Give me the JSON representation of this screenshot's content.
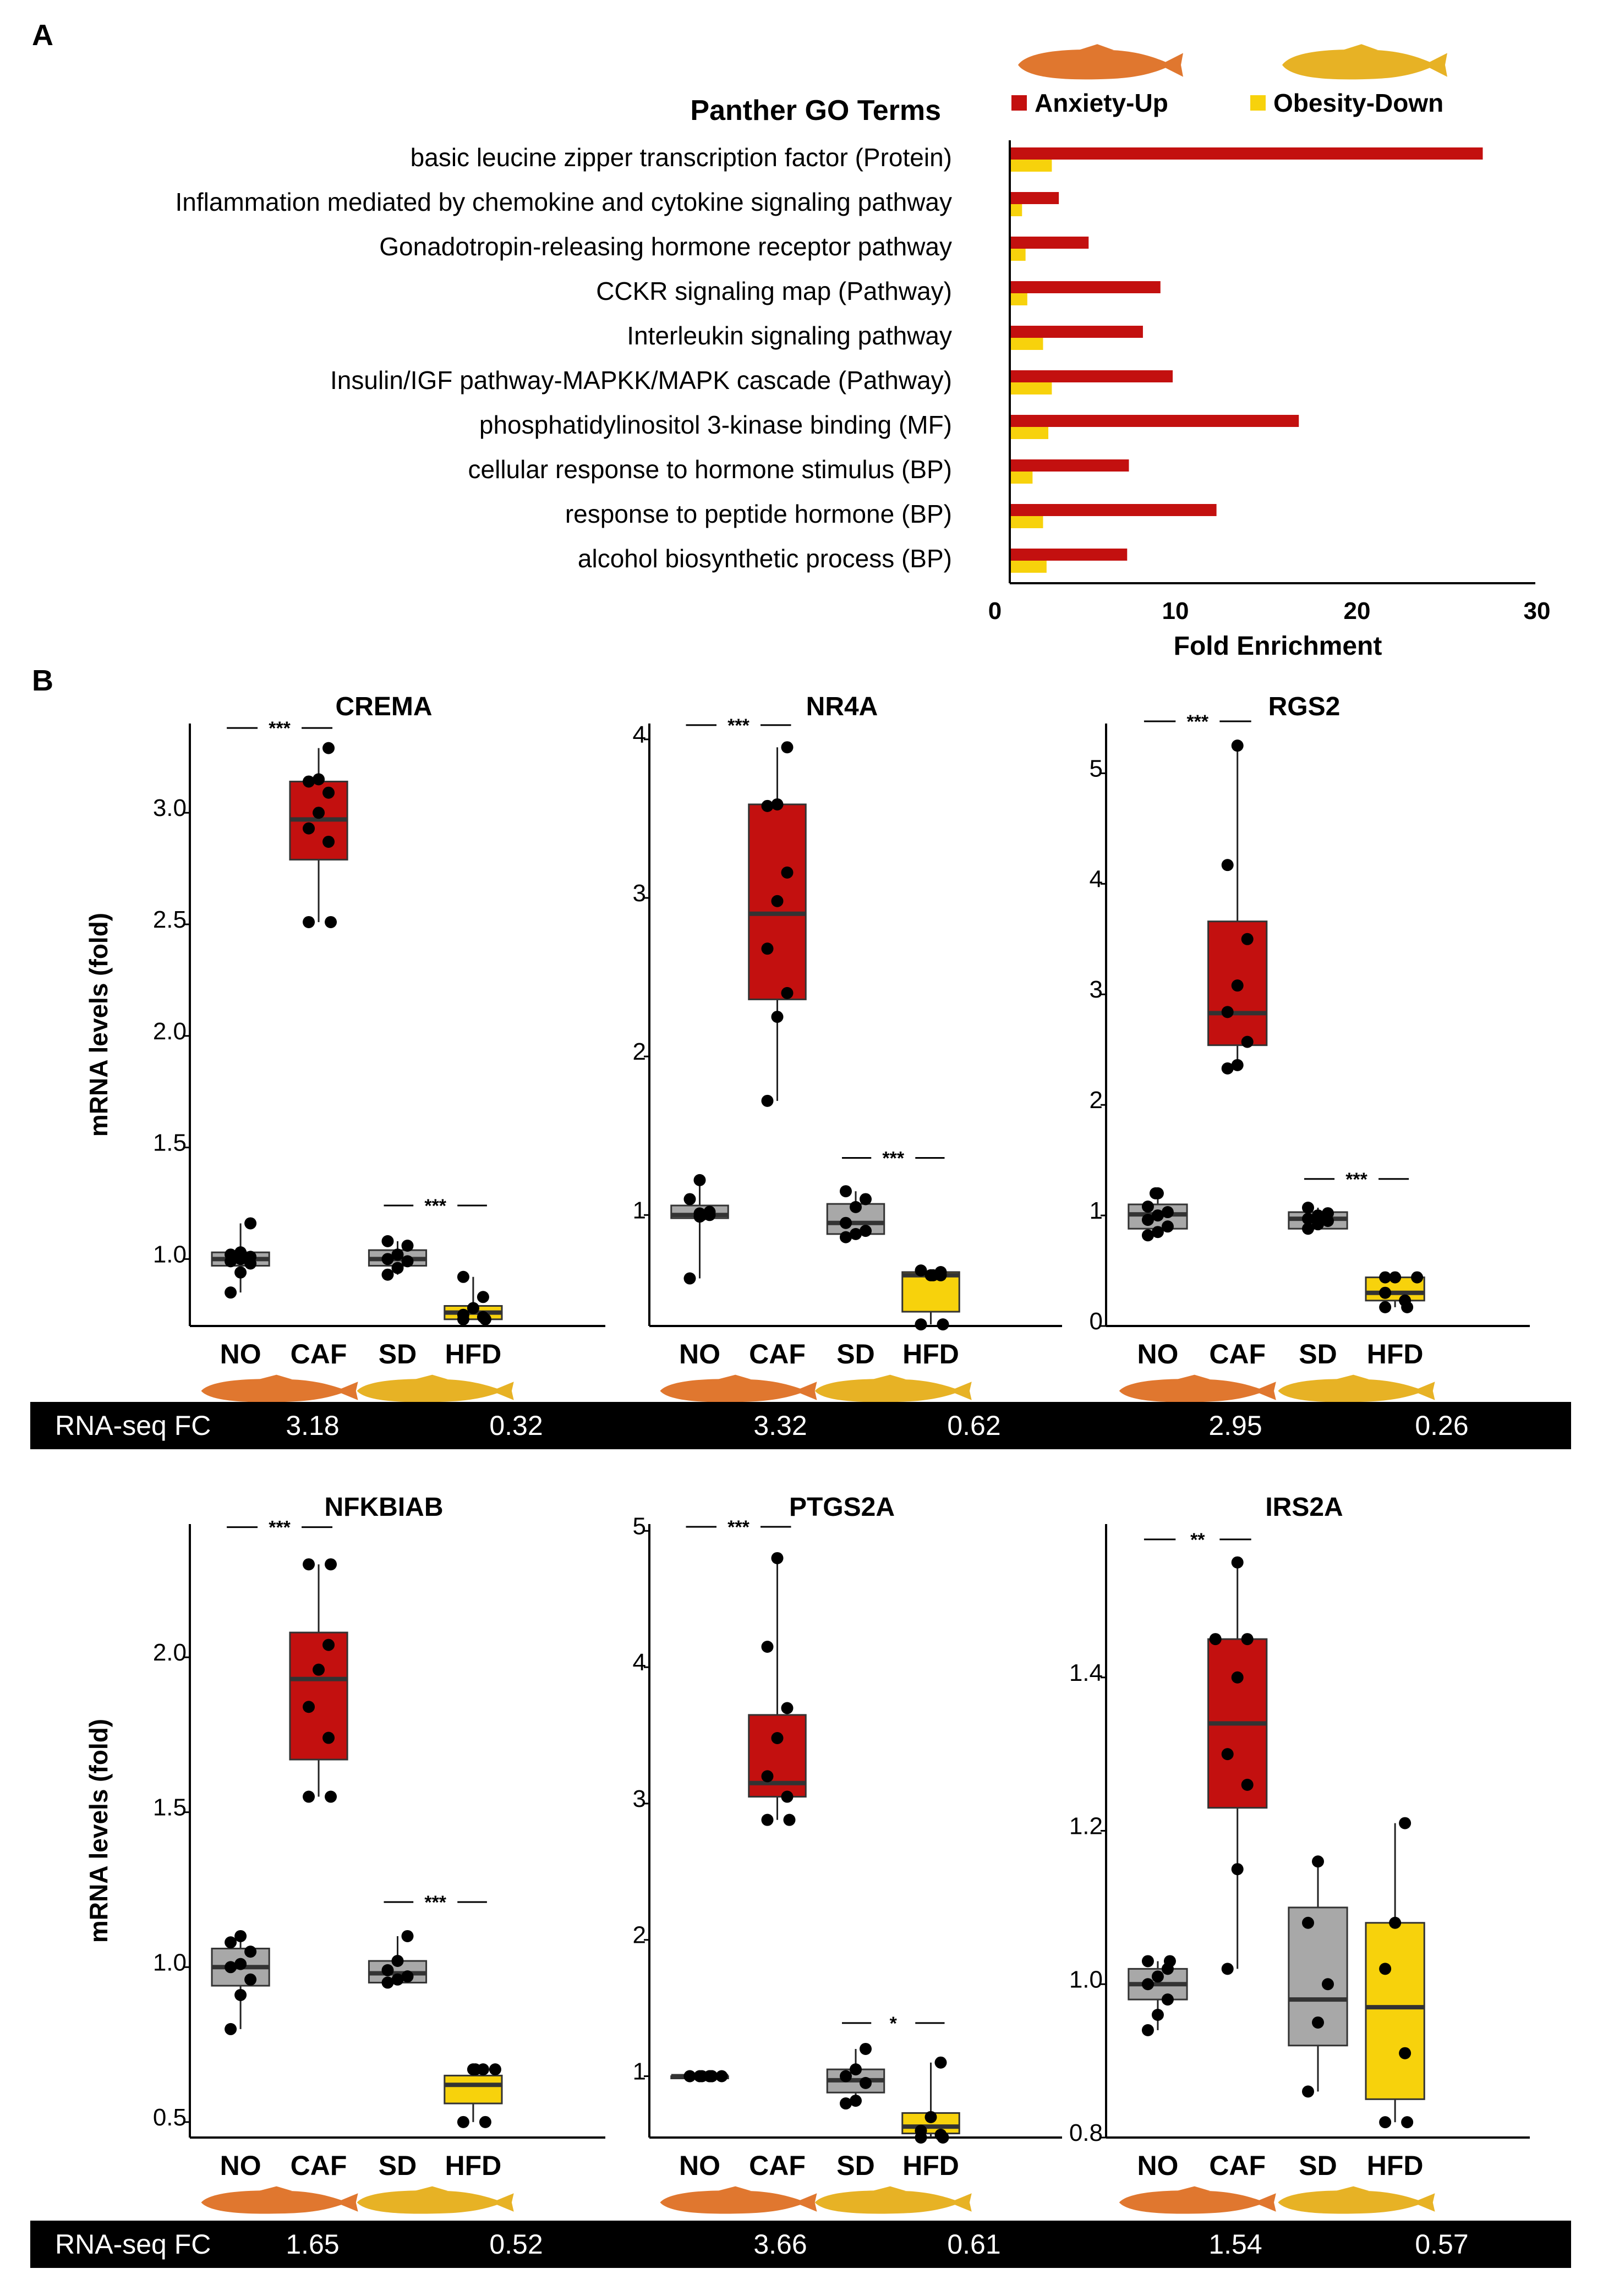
{
  "panel_labels": {
    "a": "A",
    "b": "B"
  },
  "colors": {
    "anxiety": "#c3100f",
    "obesity": "#f7d20c",
    "control": "#a8a8a8",
    "fish_orange": "#e0772f",
    "fish_gold": "#e7b225",
    "banner": "#000000",
    "banner_text": "#ffffff"
  },
  "icons": [
    "orange-fish-icon",
    "gold-fish-icon"
  ],
  "chart_data": [
    {
      "type": "bar",
      "orientation": "horizontal",
      "title": "Panther GO Terms",
      "xlabel": "Fold Enrichment",
      "xlim": [
        0,
        30
      ],
      "xticks": [
        0,
        10,
        20,
        30
      ],
      "legend_position": "top-right",
      "categories": [
        "basic leucine zipper transcription factor (Protein)",
        "Inflammation mediated by chemokine and cytokine signaling pathway",
        "Gonadotropin-releasing hormone receptor pathway",
        "CCKR signaling map (Pathway)",
        "Interleukin signaling pathway",
        "Insulin/IGF pathway-MAPKK/MAPK cascade (Pathway)",
        "phosphatidylinositol 3-kinase binding (MF)",
        "cellular response to hormone stimulus (BP)",
        "response to peptide hormone (BP)",
        "alcohol biosynthetic process (BP)"
      ],
      "series": [
        {
          "name": "Anxiety-Up",
          "values": [
            27.0,
            2.8,
            4.5,
            8.6,
            7.6,
            9.3,
            16.5,
            6.8,
            11.8,
            6.7
          ]
        },
        {
          "name": "Obesity-Down",
          "values": [
            2.4,
            0.7,
            0.9,
            1.0,
            1.9,
            2.4,
            2.2,
            1.3,
            1.9,
            2.1
          ]
        }
      ]
    },
    {
      "type": "box",
      "title": "CREMA",
      "ylabel": "mRNA levels (fold)",
      "ylim": [
        0.7,
        3.4
      ],
      "yticks": [
        "1.0",
        "1.5",
        "2.0",
        "2.5",
        "3.0"
      ],
      "groups": [
        "NO",
        "CAF",
        "SD",
        "HFD"
      ],
      "boxes": [
        {
          "min": 0.85,
          "q1": 0.97,
          "median": 1.0,
          "q3": 1.03,
          "max": 1.16
        },
        {
          "min": 2.51,
          "q1": 2.79,
          "median": 2.97,
          "q3": 3.14,
          "max": 3.29
        },
        {
          "min": 0.93,
          "q1": 0.97,
          "median": 1.0,
          "q3": 1.04,
          "max": 1.08
        },
        {
          "min": 0.73,
          "q1": 0.73,
          "median": 0.76,
          "q3": 0.79,
          "max": 0.92
        }
      ],
      "points": [
        [
          0.85,
          0.94,
          0.98,
          0.99,
          1.0,
          1.01,
          1.02,
          1.03,
          1.16
        ],
        [
          2.51,
          2.51,
          2.87,
          2.93,
          3.0,
          3.09,
          3.14,
          3.15,
          3.29
        ],
        [
          0.93,
          0.96,
          0.99,
          1.0,
          1.02,
          1.06,
          1.08
        ],
        [
          0.73,
          0.73,
          0.74,
          0.75,
          0.78,
          0.83,
          0.92
        ]
      ],
      "significance": [
        {
          "label": "***",
          "between": [
            0,
            1
          ],
          "y": 3.38
        },
        {
          "label": "***",
          "between": [
            2,
            3
          ],
          "y": 1.24
        }
      ]
    },
    {
      "type": "box",
      "title": "NR4A",
      "ylim": [
        0.3,
        4.1
      ],
      "yticks": [
        "1",
        "2",
        "3",
        "4"
      ],
      "groups": [
        "NO",
        "CAF",
        "SD",
        "HFD"
      ],
      "boxes": [
        {
          "min": 0.6,
          "q1": 0.98,
          "median": 1.0,
          "q3": 1.06,
          "max": 1.22
        },
        {
          "min": 1.72,
          "q1": 2.36,
          "median": 2.9,
          "q3": 3.59,
          "max": 3.95
        },
        {
          "min": 0.86,
          "q1": 0.88,
          "median": 0.95,
          "q3": 1.07,
          "max": 1.15
        },
        {
          "min": 0.31,
          "q1": 0.39,
          "median": 0.62,
          "q3": 0.64,
          "max": 0.65
        }
      ],
      "points": [
        [
          0.6,
          0.99,
          1.0,
          1.0,
          1.01,
          1.02,
          1.1,
          1.22
        ],
        [
          1.72,
          2.25,
          2.4,
          2.68,
          2.98,
          3.16,
          3.58,
          3.59,
          3.95
        ],
        [
          0.86,
          0.88,
          0.9,
          0.95,
          1.05,
          1.1,
          1.15
        ],
        [
          0.31,
          0.31,
          0.62,
          0.62,
          0.62,
          0.64,
          0.65
        ]
      ],
      "significance": [
        {
          "label": "***",
          "between": [
            0,
            1
          ],
          "y": 4.09
        },
        {
          "label": "***",
          "between": [
            2,
            3
          ],
          "y": 1.36
        }
      ]
    },
    {
      "type": "box",
      "title": "RGS2",
      "ylim": [
        0,
        5.45
      ],
      "yticks": [
        "0",
        "1",
        "2",
        "3",
        "4",
        "5"
      ],
      "groups": [
        "NO",
        "CAF",
        "SD",
        "HFD"
      ],
      "boxes": [
        {
          "min": 0.82,
          "q1": 0.88,
          "median": 1.01,
          "q3": 1.1,
          "max": 1.2
        },
        {
          "min": 2.33,
          "q1": 2.54,
          "median": 2.83,
          "q3": 3.66,
          "max": 5.25
        },
        {
          "min": 0.88,
          "q1": 0.88,
          "median": 0.97,
          "q3": 1.03,
          "max": 1.07
        },
        {
          "min": 0.17,
          "q1": 0.23,
          "median": 0.3,
          "q3": 0.44,
          "max": 0.44
        }
      ],
      "points": [
        [
          0.82,
          0.85,
          0.9,
          0.96,
          1.0,
          1.03,
          1.08,
          1.2,
          1.2
        ],
        [
          2.33,
          2.36,
          2.57,
          2.84,
          3.08,
          3.5,
          4.17,
          5.25
        ],
        [
          0.88,
          0.92,
          0.95,
          0.97,
          1.0,
          1.02,
          1.07
        ],
        [
          0.17,
          0.17,
          0.23,
          0.3,
          0.44,
          0.44,
          0.44
        ]
      ],
      "significance": [
        {
          "label": "***",
          "between": [
            0,
            1
          ],
          "y": 5.47
        },
        {
          "label": "***",
          "between": [
            2,
            3
          ],
          "y": 1.33
        }
      ]
    },
    {
      "type": "box",
      "title": "NFKBIAB",
      "ylabel": "mRNA levels (fold)",
      "ylim": [
        0.45,
        2.43
      ],
      "yticks": [
        "0.5",
        "1.0",
        "1.5",
        "2.0"
      ],
      "groups": [
        "NO",
        "CAF",
        "SD",
        "HFD"
      ],
      "boxes": [
        {
          "min": 0.8,
          "q1": 0.94,
          "median": 1.0,
          "q3": 1.06,
          "max": 1.1
        },
        {
          "min": 1.55,
          "q1": 1.67,
          "median": 1.93,
          "q3": 2.08,
          "max": 2.3
        },
        {
          "min": 0.95,
          "q1": 0.95,
          "median": 0.98,
          "q3": 1.02,
          "max": 1.1
        },
        {
          "min": 0.5,
          "q1": 0.56,
          "median": 0.62,
          "q3": 0.65,
          "max": 0.67
        }
      ],
      "points": [
        [
          0.8,
          0.91,
          0.96,
          1.0,
          1.01,
          1.05,
          1.08,
          1.1
        ],
        [
          1.55,
          1.55,
          1.74,
          1.84,
          1.96,
          2.04,
          2.3,
          2.3
        ],
        [
          0.95,
          0.96,
          0.97,
          0.99,
          1.02,
          1.1
        ],
        [
          0.5,
          0.5,
          0.67,
          0.67,
          0.67,
          0.67
        ]
      ],
      "significance": [
        {
          "label": "***",
          "between": [
            0,
            1
          ],
          "y": 2.42
        },
        {
          "label": "***",
          "between": [
            2,
            3
          ],
          "y": 1.21
        }
      ]
    },
    {
      "type": "box",
      "title": "PTGS2A",
      "ylim": [
        0.55,
        5.05
      ],
      "yticks": [
        "1",
        "2",
        "3",
        "4",
        "5"
      ],
      "groups": [
        "NO",
        "CAF",
        "SD",
        "HFD"
      ],
      "boxes": [
        {
          "min": 1.0,
          "q1": 1.0,
          "median": 1.0,
          "q3": 1.0,
          "max": 1.0
        },
        {
          "min": 2.88,
          "q1": 3.05,
          "median": 3.15,
          "q3": 3.65,
          "max": 4.8
        },
        {
          "min": 0.8,
          "q1": 0.88,
          "median": 0.97,
          "q3": 1.05,
          "max": 1.2
        },
        {
          "min": 0.55,
          "q1": 0.58,
          "median": 0.63,
          "q3": 0.73,
          "max": 1.1
        }
      ],
      "points": [
        [
          1.0,
          1.0,
          1.0,
          1.0,
          1.0,
          1.0,
          1.0,
          1.0,
          1.0
        ],
        [
          2.88,
          2.88,
          3.05,
          3.2,
          3.48,
          3.7,
          4.15,
          4.8
        ],
        [
          0.8,
          0.82,
          0.95,
          1.0,
          1.05,
          1.2
        ],
        [
          0.55,
          0.55,
          0.57,
          0.6,
          0.7,
          1.1
        ]
      ],
      "significance": [
        {
          "label": "***",
          "between": [
            0,
            1
          ],
          "y": 5.03
        },
        {
          "label": "*",
          "between": [
            2,
            3
          ],
          "y": 1.39
        }
      ]
    },
    {
      "type": "box",
      "title": "IRS2A",
      "ylim": [
        0.8,
        1.6
      ],
      "yticks": [
        "0.8",
        "1.0",
        "1.2",
        "1.4"
      ],
      "groups": [
        "NO",
        "CAF",
        "SD",
        "HFD"
      ],
      "boxes": [
        {
          "min": 0.94,
          "q1": 0.98,
          "median": 1.0,
          "q3": 1.02,
          "max": 1.03
        },
        {
          "min": 1.02,
          "q1": 1.23,
          "median": 1.34,
          "q3": 1.45,
          "max": 1.55
        },
        {
          "min": 0.86,
          "q1": 0.92,
          "median": 0.98,
          "q3": 1.1,
          "max": 1.16
        },
        {
          "min": 0.82,
          "q1": 0.85,
          "median": 0.97,
          "q3": 1.08,
          "max": 1.21
        }
      ],
      "points": [
        [
          0.94,
          0.96,
          0.98,
          1.0,
          1.01,
          1.02,
          1.03,
          1.03
        ],
        [
          1.02,
          1.15,
          1.26,
          1.3,
          1.4,
          1.45,
          1.45,
          1.55
        ],
        [
          0.86,
          0.95,
          1.0,
          1.08,
          1.16
        ],
        [
          0.82,
          0.82,
          0.91,
          1.02,
          1.08,
          1.21
        ]
      ],
      "significance": [
        {
          "label": "**",
          "between": [
            0,
            1
          ],
          "y": 1.58
        }
      ]
    }
  ],
  "rnaseq_rows": [
    {
      "label": "RNA-seq FC",
      "values": [
        "3.18",
        "0.32",
        "3.32",
        "0.62",
        "2.95",
        "0.26"
      ]
    },
    {
      "label": "RNA-seq FC",
      "values": [
        "1.65",
        "0.52",
        "3.66",
        "0.61",
        "1.54",
        "0.57"
      ]
    }
  ]
}
